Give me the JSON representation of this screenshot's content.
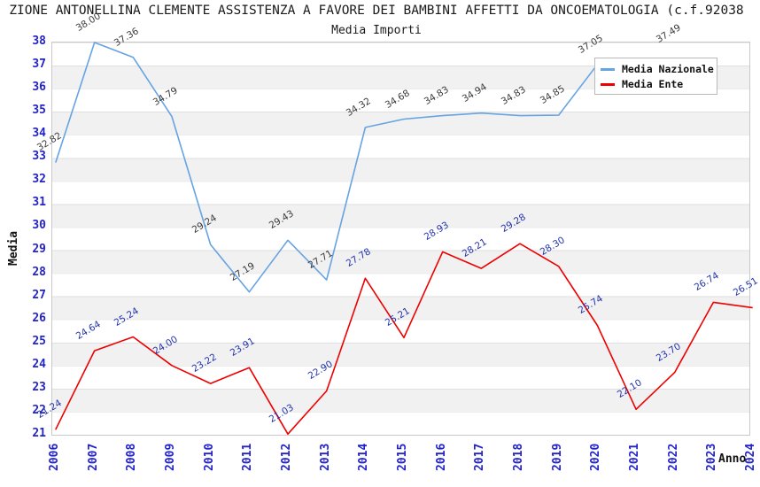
{
  "header": {
    "title": "ZIONE ANTONELLINA CLEMENTE ASSISTENZA A FAVORE DEI BAMBINI AFFETTI DA ONCOEMATOLOGIA (c.f.92038",
    "subtitle": "Media Importi"
  },
  "axes": {
    "y_title": "Media",
    "x_title": "Anno"
  },
  "legend": {
    "items": [
      {
        "label": "Media Nazionale",
        "color": "#66a3e3"
      },
      {
        "label": "Media Ente",
        "color": "#ee0000"
      }
    ]
  },
  "colors": {
    "tick_label": "#2323cc",
    "nazionale_value_label": "#3a3a3a",
    "ente_value_label": "#2233aa",
    "band_gray": "#f1f1f1",
    "grid_line": "#e4e4e4"
  },
  "chart_data": {
    "type": "line",
    "title": "Media Importi",
    "xlabel": "Anno",
    "ylabel": "Media",
    "x": [
      2006,
      2007,
      2008,
      2009,
      2010,
      2011,
      2012,
      2013,
      2014,
      2015,
      2016,
      2017,
      2018,
      2019,
      2020,
      2021,
      2022,
      2023,
      2024
    ],
    "series": [
      {
        "name": "Media Nazionale",
        "color": "#66a3e3",
        "label_color": "#3a3a3a",
        "values": [
          32.82,
          38.0,
          37.36,
          34.79,
          29.24,
          27.19,
          29.43,
          27.71,
          34.32,
          34.68,
          34.83,
          34.94,
          34.83,
          34.85,
          37.05,
          null,
          37.49,
          null,
          null
        ]
      },
      {
        "name": "Media Ente",
        "color": "#ee0000",
        "label_color": "#2233aa",
        "values": [
          21.24,
          24.64,
          25.24,
          24.0,
          23.22,
          23.91,
          21.03,
          22.9,
          27.78,
          25.21,
          28.93,
          28.21,
          29.28,
          28.3,
          25.74,
          22.1,
          23.7,
          26.74,
          26.51
        ]
      }
    ],
    "ylim": [
      21,
      38
    ],
    "y_ticks": [
      21,
      22,
      23,
      24,
      25,
      26,
      27,
      28,
      29,
      30,
      31,
      32,
      33,
      34,
      35,
      36,
      37,
      38
    ],
    "grid": true,
    "bands": "alternating horizontal white/gray per unit",
    "legend_position": "top-right",
    "value_labels": "shown, rotated"
  }
}
